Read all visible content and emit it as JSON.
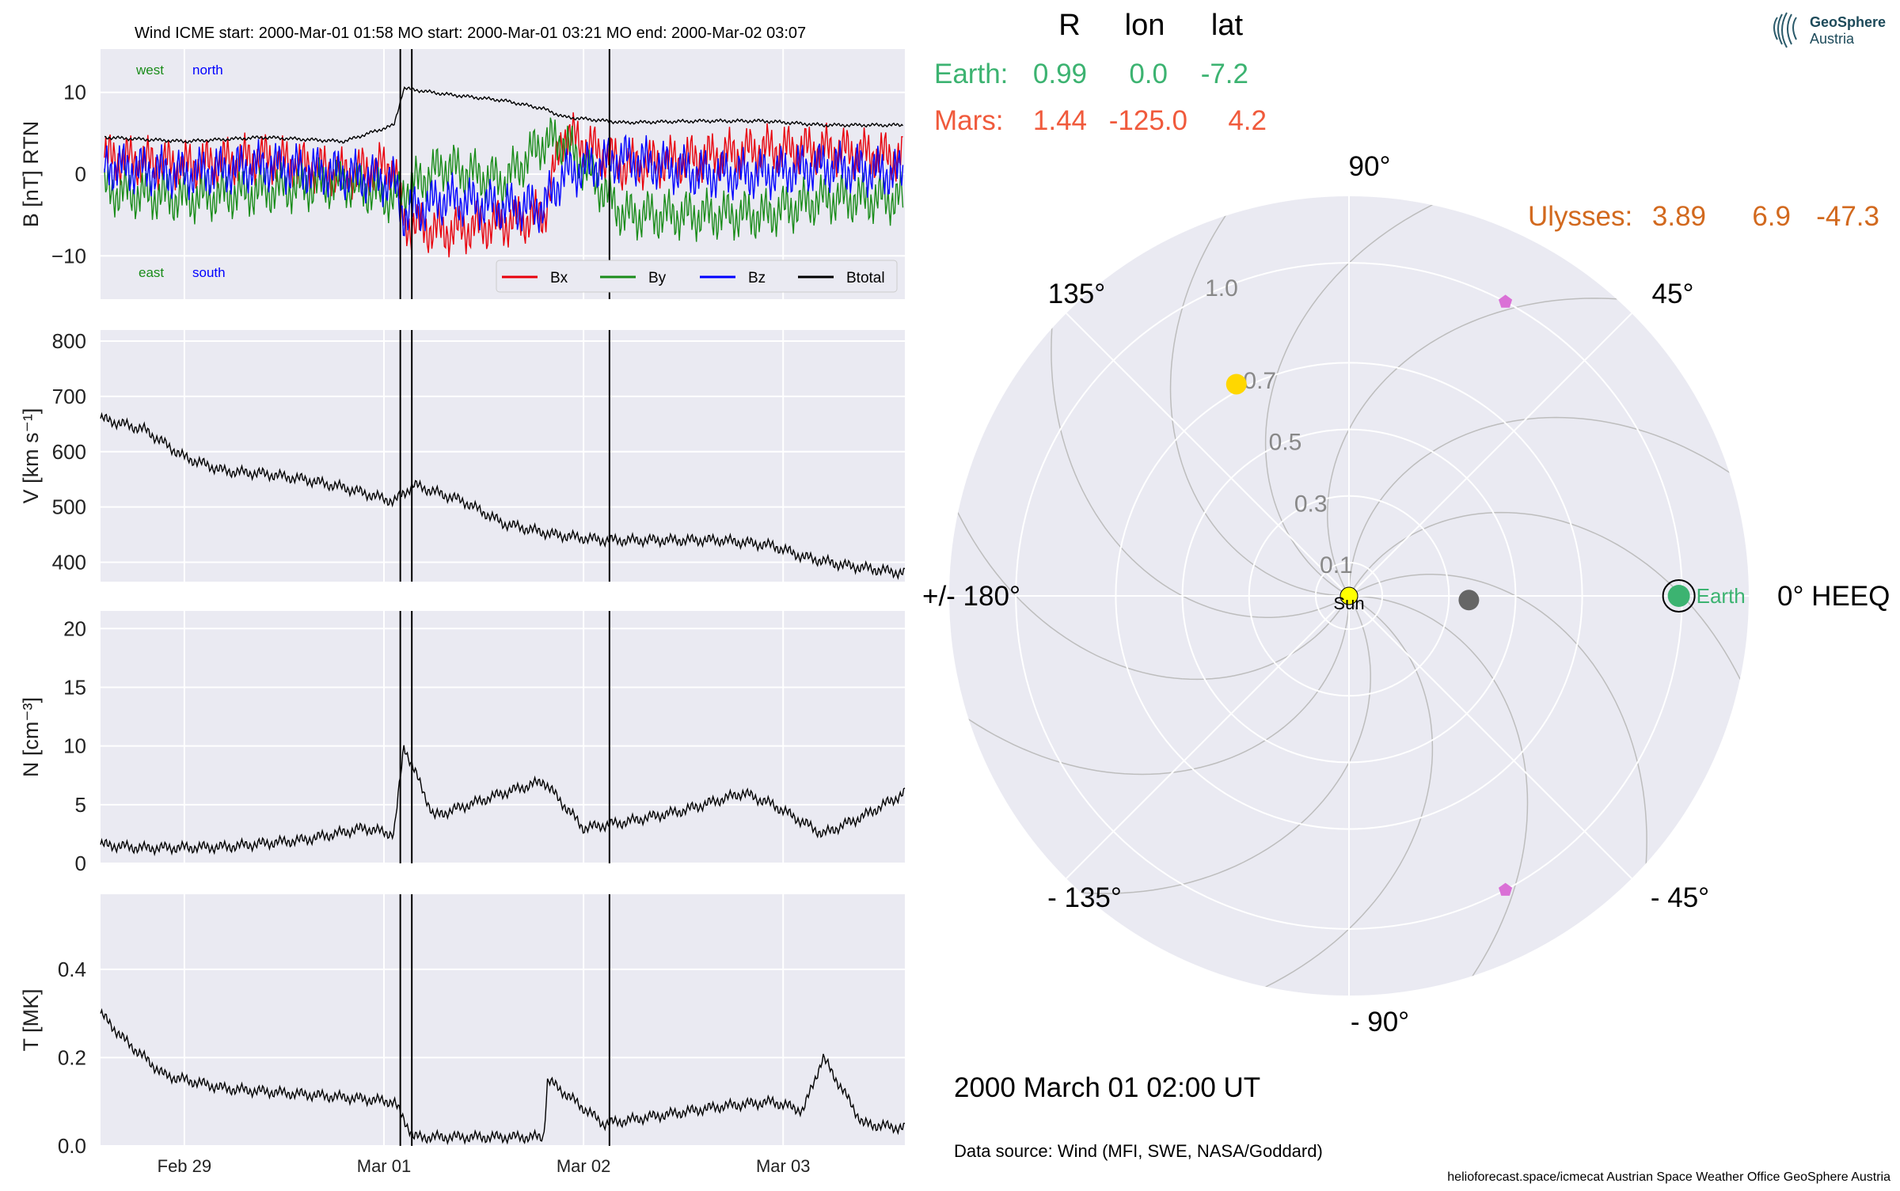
{
  "header": {
    "title": "Wind    ICME start: 2000-Mar-01 01:58   MO start: 2000-Mar-01 03:21   MO end: 2000-Mar-02 03:07"
  },
  "colors": {
    "bx": "#e8000b",
    "by": "#1a8c1a",
    "bz": "#0000ff",
    "btotal": "#000000",
    "panel_bg": "#eaeaf2",
    "earth": "#3cb371",
    "mars": "#f05a3c",
    "ulysses": "#d2691e",
    "sun": "#ffff00",
    "venus": "#ffd700",
    "mercury": "#666666",
    "stereo": "#da70d6"
  },
  "annotations": {
    "west": "west",
    "north": "north",
    "east": "east",
    "south": "south"
  },
  "events": [
    "2000-03-01T01:58",
    "2000-03-01T03:21",
    "2000-03-02T03:07"
  ],
  "chart_data": [
    {
      "type": "line",
      "ylabel": "B [nT] RTN",
      "ylim": [
        -15.3,
        15.3
      ],
      "yticks": [
        10,
        0,
        -10
      ],
      "ytick_labels": [
        "10",
        "0",
        "−10"
      ],
      "xlim_days": [
        -1.42,
        2.61
      ],
      "xticks": [
        "Feb 29",
        "Mar 01",
        "Mar 02",
        "Mar 03"
      ],
      "legend": "lower-right",
      "series": [
        {
          "name": "Bx",
          "x": [
            -1.4,
            -1.0,
            -0.6,
            -0.2,
            0.05,
            0.1,
            0.3,
            0.6,
            0.8,
            0.9,
            1.2,
            1.6,
            1.9,
            2.2,
            2.6
          ],
          "values": [
            2,
            1,
            2,
            0,
            1,
            -6,
            -7,
            -6,
            -5,
            5,
            1,
            2,
            3,
            3,
            2
          ]
        },
        {
          "name": "By",
          "x": [
            -1.4,
            -1.0,
            -0.6,
            -0.2,
            0.05,
            0.1,
            0.3,
            0.6,
            0.8,
            0.9,
            1.2,
            1.6,
            1.9,
            2.2,
            2.6
          ],
          "values": [
            -2,
            -3,
            -2,
            -1,
            -3,
            -2,
            1,
            -1,
            4,
            4,
            -5,
            -5,
            -5,
            -3,
            -3
          ]
        },
        {
          "name": "Bz",
          "x": [
            -1.4,
            -1.0,
            -0.6,
            -0.2,
            0.05,
            0.1,
            0.3,
            0.6,
            0.8,
            0.9,
            1.2,
            1.6,
            1.9,
            2.2,
            2.6
          ],
          "values": [
            1,
            0,
            1,
            0,
            -1,
            -5,
            -3,
            -4,
            -4,
            0,
            2,
            0,
            0,
            1,
            0
          ]
        },
        {
          "name": "Btotal",
          "x": [
            -1.4,
            -1.0,
            -0.6,
            -0.2,
            0.05,
            0.1,
            0.3,
            0.6,
            0.8,
            0.9,
            1.2,
            1.6,
            1.9,
            2.2,
            2.6
          ],
          "values": [
            4.5,
            4,
            4.5,
            4,
            6,
            10.5,
            9.8,
            9,
            8,
            7,
            6.3,
            6.5,
            6.5,
            6,
            6
          ]
        }
      ]
    },
    {
      "type": "line",
      "ylabel": "V [km s⁻¹]",
      "ylim": [
        365,
        820
      ],
      "yticks": [
        800,
        700,
        600,
        500,
        400
      ],
      "ytick_labels": [
        "800",
        "700",
        "600",
        "500",
        "400"
      ],
      "series": [
        {
          "name": "",
          "x": [
            -1.42,
            -1.2,
            -1.0,
            -0.8,
            -0.6,
            -0.4,
            -0.2,
            0.05,
            0.15,
            0.4,
            0.6,
            0.85,
            1.1,
            1.4,
            1.7,
            1.95,
            2.1,
            2.3,
            2.61
          ],
          "values": [
            660,
            640,
            590,
            565,
            560,
            550,
            535,
            510,
            540,
            510,
            470,
            450,
            440,
            440,
            440,
            430,
            410,
            395,
            380
          ]
        }
      ]
    },
    {
      "type": "line",
      "ylabel": "N [cm⁻³]",
      "ylim": [
        0,
        21.5
      ],
      "yticks": [
        20,
        15,
        10,
        5,
        0
      ],
      "ytick_labels": [
        "20",
        "15",
        "10",
        "5",
        "0"
      ],
      "series": [
        {
          "name": "",
          "x": [
            -1.42,
            -1.2,
            -0.8,
            -0.4,
            -0.1,
            0.05,
            0.1,
            0.25,
            0.6,
            0.8,
            1.0,
            1.2,
            1.5,
            1.8,
            1.95,
            2.2,
            2.4,
            2.61
          ],
          "values": [
            1.6,
            1.3,
            1.4,
            2,
            3,
            2.5,
            10,
            4,
            6,
            7,
            3,
            3.5,
            4.5,
            6,
            5,
            2.5,
            4,
            6
          ]
        }
      ]
    },
    {
      "type": "line",
      "ylabel": "T [MK]",
      "ylim": [
        0,
        0.57
      ],
      "yticks": [
        0.4,
        0.2,
        0.0
      ],
      "ytick_labels": [
        "0.4",
        "0.2",
        "0.0"
      ],
      "series": [
        {
          "name": "",
          "x": [
            -1.42,
            -1.3,
            -1.1,
            -0.8,
            -0.5,
            -0.2,
            0.05,
            0.15,
            0.5,
            0.8,
            0.82,
            1.1,
            1.4,
            1.7,
            1.95,
            2.1,
            2.2,
            2.4,
            2.61
          ],
          "values": [
            0.3,
            0.24,
            0.16,
            0.13,
            0.12,
            0.11,
            0.1,
            0.02,
            0.02,
            0.02,
            0.15,
            0.05,
            0.07,
            0.09,
            0.1,
            0.08,
            0.2,
            0.05,
            0.04
          ]
        }
      ]
    }
  ],
  "polar": {
    "header": {
      "r": "R",
      "lon": "lon",
      "lat": "lat"
    },
    "rows": [
      {
        "label": "Earth:",
        "r": "0.99",
        "lon": "0.0",
        "lat": "-7.2"
      },
      {
        "label": "Mars:",
        "r": "1.44",
        "lon": "-125.0",
        "lat": "4.2"
      },
      {
        "label": "Ulysses:",
        "r": "3.89",
        "lon": "6.9",
        "lat": "-47.3"
      }
    ],
    "angle_labels": {
      "a0": "0° HEEQ",
      "a45": "45°",
      "a90": "90°",
      "a135": "135°",
      "a180": "+/- 180°",
      "am135": "- 135°",
      "am90": "- 90°",
      "am45": "- 45°"
    },
    "radial_ticks": [
      "0.1",
      "0.3",
      "0.5",
      "0.7",
      "1.0"
    ],
    "sun_label": "Sun",
    "earth_label": "Earth",
    "bodies": [
      {
        "name": "Sun",
        "r": 0.0,
        "lon": 0.0
      },
      {
        "name": "Earth",
        "r": 0.99,
        "lon": 0.0
      },
      {
        "name": "Venus",
        "r": 0.72,
        "lon": 118
      },
      {
        "name": "Mercury",
        "r": 0.36,
        "lon": -2
      },
      {
        "name": "STEREO",
        "r": 1.0,
        "lon": 62
      },
      {
        "name": "STEREO",
        "r": 1.0,
        "lon": -62
      }
    ]
  },
  "footer": {
    "date": "2000 March 01  02:00 UT",
    "source": "Data source: Wind (MFI, SWE, NASA/Goddard)",
    "credits": "helioforecast.space/icmecat   Austrian Space Weather Office   GeoSphere Austria"
  },
  "logo": {
    "line1": "GeoSphere",
    "line2": "Austria"
  }
}
